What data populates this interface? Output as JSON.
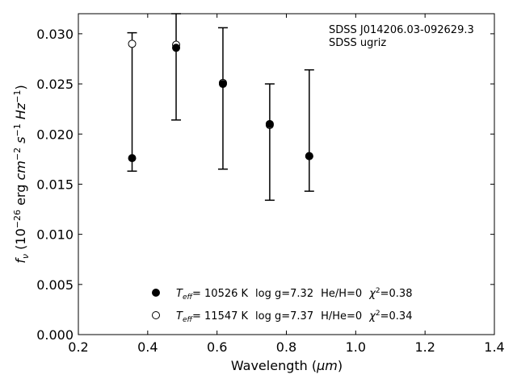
{
  "chart_data": {
    "type": "scatter",
    "xlabel_main": "Wavelength (",
    "xlabel_unit": "μm",
    "xlabel_close": ")",
    "ylabel": {
      "f": "f",
      "nu": "ν",
      "open": " (10",
      "exp26": "−26",
      "erg": " erg ",
      "cm": "cm",
      "exp2": "−2",
      "s": " s",
      "exp1a": "−1",
      "hz": " Hz",
      "exp1b": "−1",
      "close": ")"
    },
    "xlim": [
      0.2,
      1.4
    ],
    "ylim": [
      0.0,
      0.032
    ],
    "xticks": [
      0.2,
      0.4,
      0.6,
      0.8,
      1.0,
      1.2,
      1.4
    ],
    "xtick_labels": [
      "0.2",
      "0.4",
      "0.6",
      "0.8",
      "1.0",
      "1.2",
      "1.4"
    ],
    "yticks": [
      0.0,
      0.005,
      0.01,
      0.015,
      0.02,
      0.025,
      0.03
    ],
    "ytick_labels": [
      "0.000",
      "0.005",
      "0.010",
      "0.015",
      "0.020",
      "0.025",
      "0.030"
    ],
    "annotation": [
      "SDSS J014206.03-092629.3",
      "SDSS ugriz"
    ],
    "observed": {
      "x": [
        0.355,
        0.482,
        0.617,
        0.752,
        0.866
      ],
      "y": [
        0.0176,
        0.0286,
        0.025,
        0.021,
        0.0178
      ],
      "yerr_low": [
        0.0163,
        0.0214,
        0.0165,
        0.0134,
        0.0143
      ],
      "yerr_high": [
        0.0301,
        0.032,
        0.0306,
        0.025,
        0.0264
      ]
    },
    "series": [
      {
        "marker": "filled",
        "x": [
          0.355,
          0.482,
          0.617,
          0.752,
          0.866
        ],
        "y": [
          0.0176,
          0.0286,
          0.025,
          0.021,
          0.0178
        ],
        "legend": {
          "t": "T",
          "sub": "eff",
          "temp": "= 10526 K",
          "logg": "log g=7.32",
          "comp": "He/H=0",
          "chi": "χ",
          "chi_exp": "2",
          "chi_val": "=0.38"
        }
      },
      {
        "marker": "open",
        "x": [
          0.355,
          0.482,
          0.617,
          0.752,
          0.866
        ],
        "y": [
          0.029,
          0.0289,
          0.0251,
          0.0209,
          0.0178
        ],
        "legend": {
          "t": "T",
          "sub": "eff",
          "temp": "= 11547 K",
          "logg": "log g=7.37",
          "comp": "H/He=0",
          "chi": "χ",
          "chi_exp": "2",
          "chi_val": "=0.34"
        }
      }
    ],
    "legend_placement": "lower-center",
    "grid": false
  }
}
